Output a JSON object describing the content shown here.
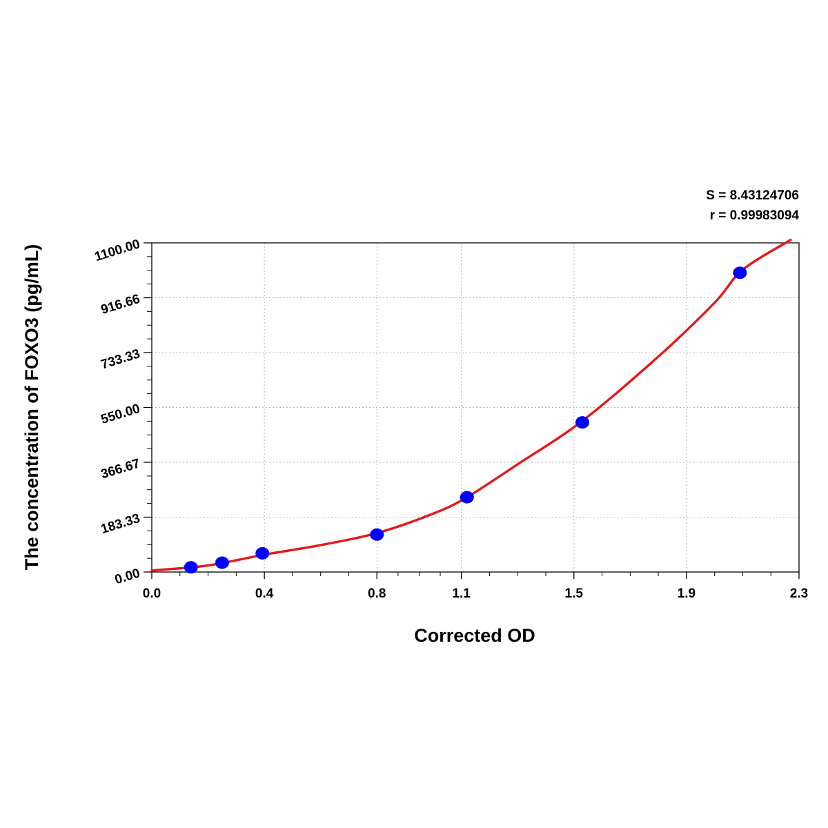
{
  "chart_data": {
    "type": "scatter",
    "xlabel": "Corrected OD",
    "ylabel": "The concentration of FOXO3 (pg/mL)",
    "xlim": [
      0,
      2.3
    ],
    "ylim": [
      0,
      1100
    ],
    "x_ticks": [
      0,
      0.4,
      0.8,
      1.1,
      1.5,
      1.9,
      2.3
    ],
    "x_tick_labels": [
      "0.0",
      "0.4",
      "0.8",
      "1.1",
      "1.5",
      "1.9",
      "2.3"
    ],
    "y_ticks": [
      0,
      183.33,
      366.67,
      550,
      733.33,
      916.66,
      1100
    ],
    "y_tick_labels": [
      "0.00",
      "183.33",
      "366.67",
      "550.00",
      "733.33",
      "916.66",
      "1100.00"
    ],
    "grid": true,
    "stats": [
      "S = 8.43124706",
      "r = 0.99983094"
    ],
    "series": [
      {
        "kind": "points",
        "color": "#0000ff",
        "points": [
          {
            "x": 0.139,
            "y": 15.6
          },
          {
            "x": 0.25,
            "y": 31.2
          },
          {
            "x": 0.393,
            "y": 62.5
          },
          {
            "x": 0.8,
            "y": 125
          },
          {
            "x": 1.12,
            "y": 250
          },
          {
            "x": 1.53,
            "y": 500
          },
          {
            "x": 2.09,
            "y": 1000
          }
        ]
      },
      {
        "kind": "fit-curve",
        "color": "#e41a1a",
        "points": [
          {
            "x": 0.0,
            "y": 5
          },
          {
            "x": 0.2,
            "y": 22
          },
          {
            "x": 0.4,
            "y": 58
          },
          {
            "x": 0.6,
            "y": 90
          },
          {
            "x": 0.8,
            "y": 130
          },
          {
            "x": 1.0,
            "y": 195
          },
          {
            "x": 1.12,
            "y": 250
          },
          {
            "x": 1.3,
            "y": 360
          },
          {
            "x": 1.53,
            "y": 505
          },
          {
            "x": 1.8,
            "y": 720
          },
          {
            "x": 2.0,
            "y": 900
          },
          {
            "x": 2.1,
            "y": 1010
          },
          {
            "x": 2.27,
            "y": 1110
          }
        ]
      }
    ]
  }
}
